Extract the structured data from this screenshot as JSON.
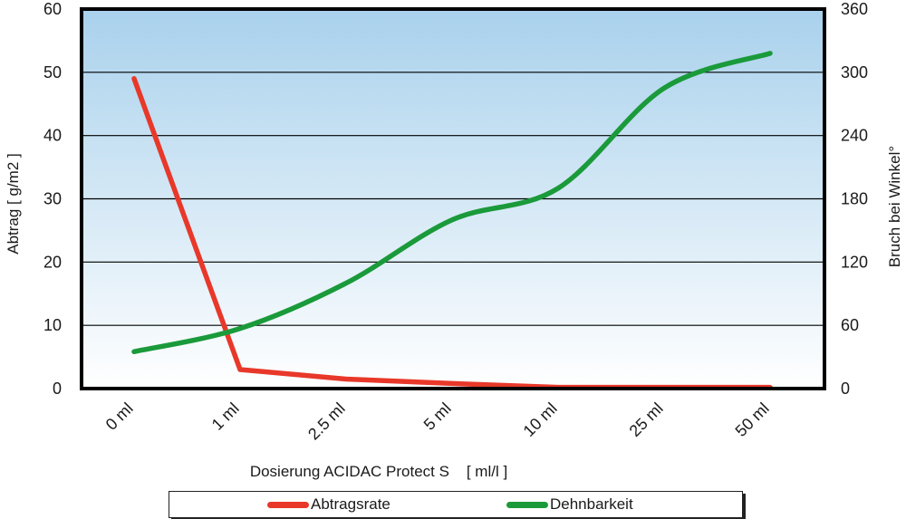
{
  "chart_data": {
    "type": "line",
    "categories": [
      "0 ml",
      "1 ml",
      "2.5 ml",
      "5 ml",
      "10 ml",
      "25 ml",
      "50 ml"
    ],
    "xlabel": "Dosierung ACIDAC Protect S    [ ml/l ]",
    "ylabel": "Abtrag [ g/m2 ]",
    "y2label": "Bruch bei Winkel°",
    "ylim": [
      0,
      60
    ],
    "y2lim": [
      0,
      360
    ],
    "yticks": [
      "0",
      "10",
      "20",
      "30",
      "40",
      "50",
      "60"
    ],
    "y2ticks": [
      "0",
      "60",
      "120",
      "180",
      "240",
      "300",
      "360"
    ],
    "grid": true,
    "legend_position": "bottom",
    "series": [
      {
        "name": "Abtragsrate",
        "axis": "left",
        "color": "#e8382a",
        "smooth": false,
        "values": [
          49,
          3,
          1.5,
          0.8,
          0.2,
          0.2,
          0.2
        ]
      },
      {
        "name": "Dehnbarkeit",
        "axis": "right",
        "color": "#1a9a3a",
        "smooth": true,
        "values": [
          35,
          57,
          100,
          160,
          190,
          285,
          318
        ]
      }
    ],
    "background_gradient": [
      "#a9d1ec",
      "#ffffff"
    ],
    "frame_color": "#000000"
  }
}
